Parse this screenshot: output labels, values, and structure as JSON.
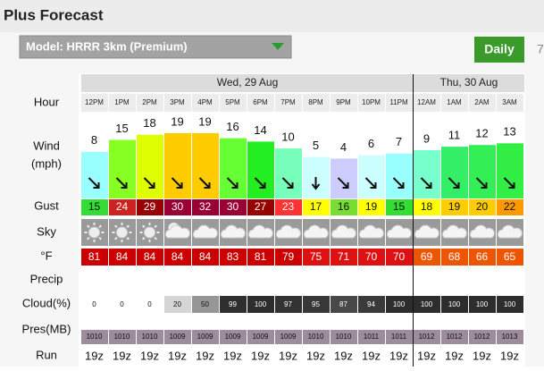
{
  "header": {
    "title": "Plus Forecast"
  },
  "model_select": {
    "label": "Model: HRRR 3km (Premium)"
  },
  "tabs": [
    "Daily",
    "7"
  ],
  "row_labels": {
    "hour": "Hour",
    "wind": [
      "Wind",
      "(mph)"
    ],
    "gust": "Gust",
    "sky": "Sky",
    "temp": "°F",
    "precip": "Precip",
    "cloud": "Cloud(%)",
    "pres": "Pres(MB)",
    "run": "Run"
  },
  "days": [
    {
      "label": "Wed, 29 Aug",
      "columns": [
        {
          "hour": "12PM",
          "wind": 8,
          "wind_color": "#99ffff",
          "gust": 15,
          "gust_color": "#33dd33",
          "temp": 81,
          "temp_color": "#cc0000",
          "cloud": 0,
          "pres": 1010,
          "run": "19z"
        },
        {
          "hour": "1PM",
          "wind": 15,
          "wind_color": "#88ff22",
          "gust": 24,
          "gust_color": "#cc2222",
          "temp": 84,
          "temp_color": "#cc0000",
          "cloud": 0,
          "pres": 1010,
          "run": "19z"
        },
        {
          "hour": "2PM",
          "wind": 18,
          "wind_color": "#ddff00",
          "gust": 29,
          "gust_color": "#990000",
          "temp": 84,
          "temp_color": "#cc0000",
          "cloud": 0,
          "pres": 1010,
          "run": "19z"
        },
        {
          "hour": "3PM",
          "wind": 19,
          "wind_color": "#ffcc00",
          "gust": 30,
          "gust_color": "#990033",
          "temp": 84,
          "temp_color": "#cc0000",
          "cloud": 20,
          "pres": 1009,
          "run": "19z"
        },
        {
          "hour": "4PM",
          "wind": 19,
          "wind_color": "#ffcc00",
          "gust": 32,
          "gust_color": "#990033",
          "temp": 84,
          "temp_color": "#cc0000",
          "cloud": 50,
          "pres": 1009,
          "run": "19z"
        },
        {
          "hour": "5PM",
          "wind": 16,
          "wind_color": "#66ff33",
          "gust": 30,
          "gust_color": "#990033",
          "temp": 83,
          "temp_color": "#cc0000",
          "cloud": 99,
          "pres": 1009,
          "run": "19z"
        },
        {
          "hour": "6PM",
          "wind": 14,
          "wind_color": "#22ee22",
          "gust": 27,
          "gust_color": "#990000",
          "temp": 81,
          "temp_color": "#cc0000",
          "cloud": 100,
          "pres": 1009,
          "run": "19z"
        },
        {
          "hour": "7PM",
          "wind": 10,
          "wind_color": "#77ffbb",
          "gust": 23,
          "gust_color": "#ff3333",
          "temp": 79,
          "temp_color": "#cc0000",
          "cloud": 97,
          "pres": 1009,
          "run": "19z"
        },
        {
          "hour": "8PM",
          "wind": 5,
          "wind_color": "#ccffff",
          "gust": 17,
          "gust_color": "#ffff00",
          "temp": 75,
          "temp_color": "#dd1111",
          "cloud": 95,
          "pres": 1010,
          "run": "19z"
        },
        {
          "hour": "9PM",
          "wind": 4,
          "wind_color": "#ccccff",
          "gust": 16,
          "gust_color": "#77dd33",
          "temp": 71,
          "temp_color": "#dd1111",
          "cloud": 87,
          "pres": 1010,
          "run": "19z"
        },
        {
          "hour": "10PM",
          "wind": 6,
          "wind_color": "#ccffff",
          "gust": 19,
          "gust_color": "#ffff00",
          "temp": 70,
          "temp_color": "#dd1111",
          "cloud": 94,
          "pres": 1011,
          "run": "19z"
        },
        {
          "hour": "11PM",
          "wind": 7,
          "wind_color": "#99ffff",
          "gust": 15,
          "gust_color": "#33dd33",
          "temp": 70,
          "temp_color": "#dd1111",
          "cloud": 100,
          "pres": 1011,
          "run": "19z"
        }
      ]
    },
    {
      "label": "Thu, 30 Aug",
      "columns": [
        {
          "hour": "12AM",
          "wind": 9,
          "wind_color": "#77ffcc",
          "gust": 18,
          "gust_color": "#ffff00",
          "temp": 69,
          "temp_color": "#ee5500",
          "cloud": 100,
          "pres": 1012,
          "run": "19z"
        },
        {
          "hour": "1AM",
          "wind": 11,
          "wind_color": "#33ee66",
          "gust": 19,
          "gust_color": "#ffcc00",
          "temp": 68,
          "temp_color": "#ee5500",
          "cloud": 100,
          "pres": 1012,
          "run": "19z"
        },
        {
          "hour": "2AM",
          "wind": 12,
          "wind_color": "#33ee55",
          "gust": 20,
          "gust_color": "#ffcc00",
          "temp": 66,
          "temp_color": "#ee5500",
          "cloud": 100,
          "pres": 1012,
          "run": "19z"
        },
        {
          "hour": "3AM",
          "wind": 13,
          "wind_color": "#33ee44",
          "gust": 22,
          "gust_color": "#ff9900",
          "temp": 65,
          "temp_color": "#ee5500",
          "cloud": 100,
          "pres": 1013,
          "run": "19z"
        }
      ]
    }
  ]
}
